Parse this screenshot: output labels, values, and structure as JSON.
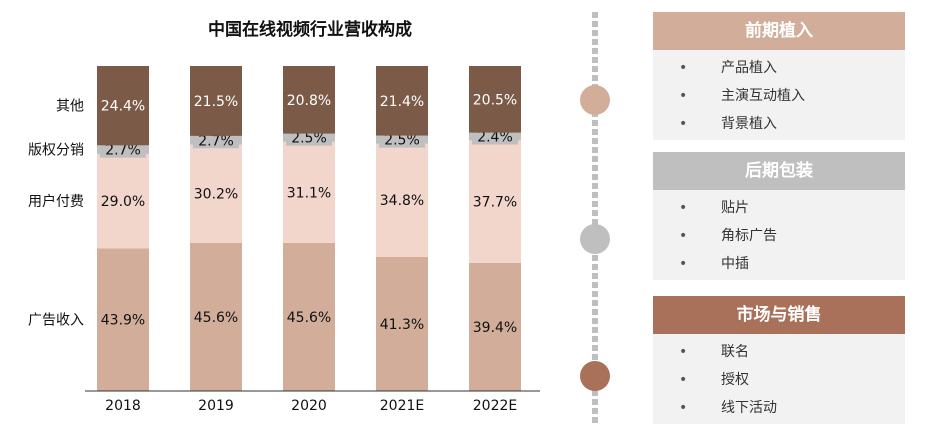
{
  "chart_data": {
    "type": "bar",
    "stacked": true,
    "normalized": true,
    "title": "中国在线视频行业营收构成",
    "categories": [
      "2018",
      "2019",
      "2020",
      "2021E",
      "2022E"
    ],
    "series": [
      {
        "name": "广告收入",
        "color": "#d2ae9a",
        "values": [
          43.9,
          45.6,
          45.6,
          41.3,
          39.4
        ],
        "labels": [
          "43.9%",
          "45.6%",
          "45.6%",
          "41.3%",
          "39.4%"
        ],
        "label_color": "#111111"
      },
      {
        "name": "用户付费",
        "color": "#f2d6cc",
        "values": [
          29.0,
          30.2,
          31.1,
          34.8,
          37.7
        ],
        "labels": [
          "29.0%",
          "30.2%",
          "31.1%",
          "34.8%",
          "37.7%"
        ],
        "label_color": "#111111"
      },
      {
        "name": "版权分销",
        "color": "#bfbfbf",
        "values": [
          2.7,
          2.7,
          2.5,
          2.5,
          2.4
        ],
        "labels": [
          "2.7%",
          "2.7%",
          "2.5%",
          "2.5%",
          "2.4%"
        ],
        "label_color": "#111111"
      },
      {
        "name": "其他",
        "color": "#7b5a48",
        "values": [
          24.4,
          21.5,
          20.8,
          21.4,
          20.5
        ],
        "labels": [
          "24.4%",
          "21.5%",
          "20.8%",
          "21.4%",
          "20.5%"
        ],
        "label_color": "#ffffff"
      }
    ],
    "legend": "left",
    "grid": false
  },
  "timeline": {
    "dot_colors": [
      "#d2ae9a",
      "#bfbfbf",
      "#a9705a"
    ]
  },
  "panels": [
    {
      "title": "前期植入",
      "color": "#d2ae9a",
      "items": [
        "产品植入",
        "主演互动植入",
        "背景植入"
      ]
    },
    {
      "title": "后期包装",
      "color": "#bfbfbf",
      "items": [
        "贴片",
        "角标广告",
        "中插"
      ]
    },
    {
      "title": "市场与销售",
      "color": "#a9705a",
      "items": [
        "联名",
        "授权",
        "线下活动"
      ]
    }
  ]
}
